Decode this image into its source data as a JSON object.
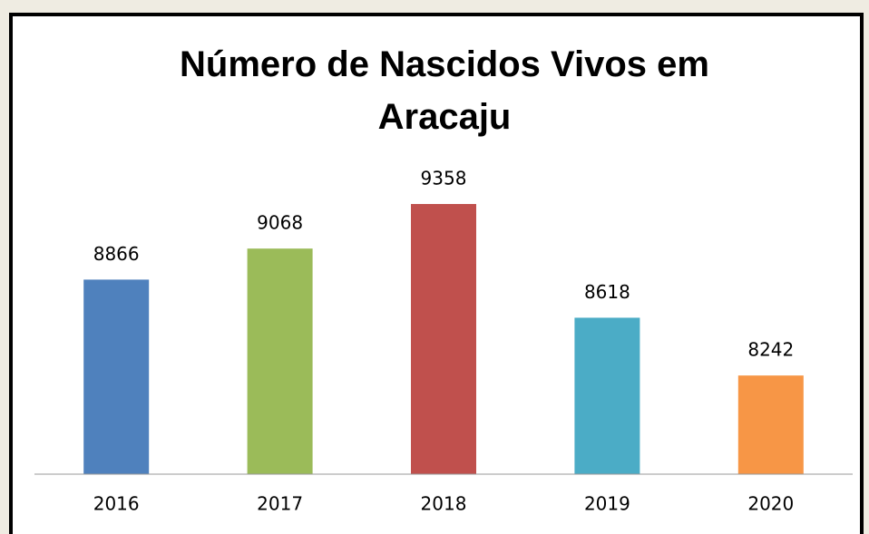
{
  "chart_data": {
    "type": "bar",
    "title": "Número de Nascidos Vivos em Aracaju",
    "categories": [
      "2016",
      "2017",
      "2018",
      "2019",
      "2020"
    ],
    "values": [
      8866,
      9068,
      9358,
      8618,
      8242
    ],
    "colors": [
      "#4f81bd",
      "#9bbb59",
      "#c0504d",
      "#4bacc6",
      "#f79646"
    ],
    "ylim": [
      7600,
      9600
    ],
    "data_labels": true
  }
}
